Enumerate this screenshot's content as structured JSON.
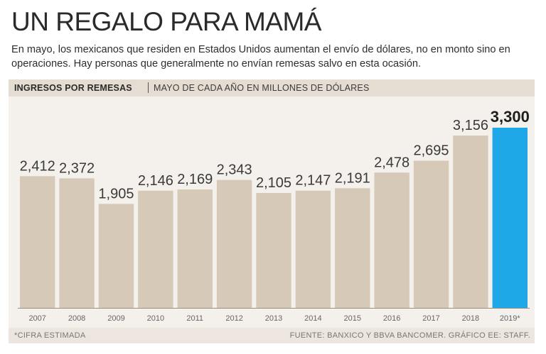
{
  "title": "UN REGALO PARA MAMÁ",
  "subtitle": "En mayo, los mexicanos que residen en Estados Unidos aumentan el envío de dólares, no en monto sino en operaciones. Hay personas que generalmente no envían remesas salvo en esta ocasión.",
  "header": {
    "main": "INGRESOS POR REMESAS",
    "sub": "MAYO DE CADA AÑO EN MILLONES DE DÓLARES"
  },
  "footer": {
    "note": "*CIFRA ESTIMADA",
    "source": "FUENTE: BANXICO Y BBVA BANCOMER. GRÁFICO EE: STAFF."
  },
  "colors": {
    "bar": "#d6c9b8",
    "highlight": "#1fa8e8",
    "label": "#3a3a3a",
    "tick": "#666666",
    "baseline": "#9a9080"
  },
  "chart_data": {
    "type": "bar",
    "title": "INGRESOS POR REMESAS",
    "ylabel": "MAYO DE CADA AÑO EN MILLONES DE DÓLARES",
    "categories": [
      "2007",
      "2008",
      "2009",
      "2010",
      "2011",
      "2012",
      "2013",
      "2014",
      "2015",
      "2016",
      "2017",
      "2018",
      "2019*"
    ],
    "values": [
      2412,
      2372,
      1905,
      2146,
      2169,
      2343,
      2105,
      2147,
      2191,
      2478,
      2695,
      3156,
      3300
    ],
    "value_labels": [
      "2,412",
      "2,372",
      "1,905",
      "2,146",
      "2,169",
      "2,343",
      "2,105",
      "2,147",
      "2,191",
      "2,478",
      "2,695",
      "3,156",
      "3,300"
    ],
    "highlight_index": 12,
    "ylim": [
      0,
      3300
    ],
    "grid": false
  }
}
